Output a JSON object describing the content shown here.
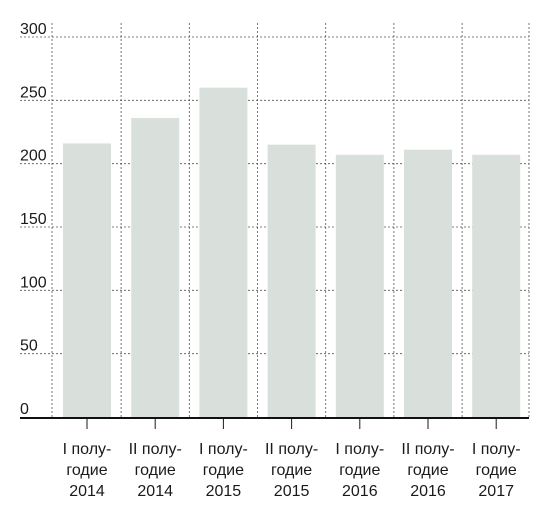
{
  "chart_data": {
    "type": "bar",
    "categories": [
      [
        "I полу-",
        "годие",
        "2014"
      ],
      [
        "II полу-",
        "годие",
        "2014"
      ],
      [
        "I полу-",
        "годие",
        "2015"
      ],
      [
        "II полу-",
        "годие",
        "2015"
      ],
      [
        "I полу-",
        "годие",
        "2016"
      ],
      [
        "II полу-",
        "годие",
        "2016"
      ],
      [
        "I полу-",
        "годие",
        "2017"
      ]
    ],
    "values": [
      216,
      236,
      260,
      215,
      207,
      211,
      207
    ],
    "title": "",
    "xlabel": "",
    "ylabel": "",
    "ylim": [
      0,
      300
    ],
    "yticks": [
      "0",
      "50",
      "100",
      "150",
      "200",
      "250",
      "300"
    ],
    "grid": true,
    "colors": {
      "bar": "#d9dfdb",
      "grid": "#555555",
      "axis": "#111111",
      "text": "#1a1a1a"
    }
  }
}
